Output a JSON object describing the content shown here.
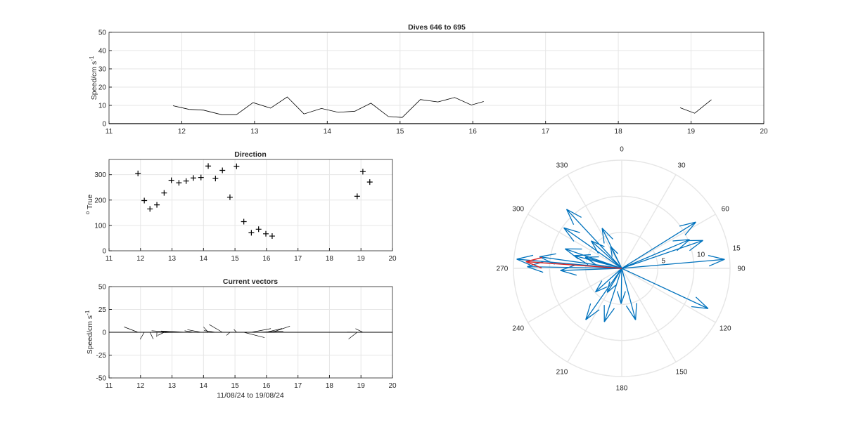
{
  "panels": {
    "speed": {
      "title": "Dives 646 to 695",
      "ylabel_main": "Speed/cm s",
      "ylabel_sup": "-1",
      "xlim": [
        11,
        20
      ],
      "ylim": [
        0,
        50
      ],
      "xticks": [
        "11",
        "12",
        "13",
        "14",
        "15",
        "16",
        "17",
        "18",
        "19",
        "20"
      ],
      "yticks": [
        "0",
        "10",
        "20",
        "30",
        "40",
        "50"
      ]
    },
    "direction": {
      "title": "Direction",
      "ylabel_sup": "o",
      "ylabel_main": " True",
      "xlim": [
        11,
        20
      ],
      "ylim": [
        0,
        360
      ],
      "xticks": [
        "11",
        "12",
        "13",
        "14",
        "15",
        "16",
        "17",
        "18",
        "19",
        "20"
      ],
      "yticks": [
        "0",
        "100",
        "200",
        "300"
      ]
    },
    "vectors": {
      "title": "Current vectors",
      "ylabel_main": "Speed/cm s",
      "ylabel_sup": "-1",
      "xlabel": "11/08/24 to 19/08/24",
      "xlim": [
        11,
        20
      ],
      "ylim": [
        -50,
        50
      ],
      "xticks": [
        "11",
        "12",
        "13",
        "14",
        "15",
        "16",
        "17",
        "18",
        "19",
        "20"
      ],
      "yticks": [
        "-50",
        "-25",
        "0",
        "25",
        "50"
      ]
    },
    "compass": {
      "angle_labels": [
        "0",
        "30",
        "60",
        "90",
        "120",
        "150",
        "180",
        "210",
        "240",
        "270",
        "300",
        "330"
      ],
      "radius_labels": [
        "5",
        "10",
        "15"
      ],
      "rmax": 15
    }
  },
  "colors": {
    "line": "#000000",
    "grid": "#e6e6e6",
    "axis": "#262626",
    "arrow": "#0072bd",
    "mean_arrow": "#d62728"
  },
  "chart_data": [
    {
      "type": "line",
      "title": "Dives 646 to 695",
      "ylabel": "Speed/cm s-1",
      "xlim": [
        11,
        20
      ],
      "ylim": [
        0,
        50
      ],
      "grid": true,
      "segments": [
        [
          [
            11.88,
            9.8
          ],
          [
            12.1,
            7.8
          ],
          [
            12.3,
            7.4
          ],
          [
            12.55,
            4.9
          ],
          [
            12.75,
            4.9
          ],
          [
            12.98,
            11.5
          ],
          [
            13.22,
            8.5
          ],
          [
            13.45,
            14.6
          ],
          [
            13.68,
            5.3
          ],
          [
            13.92,
            8.3
          ],
          [
            14.15,
            6.2
          ],
          [
            14.38,
            6.8
          ],
          [
            14.6,
            11.2
          ],
          [
            14.84,
            3.9
          ],
          [
            15.03,
            3.4
          ],
          [
            15.28,
            13.2
          ],
          [
            15.52,
            11.9
          ],
          [
            15.75,
            14.3
          ],
          [
            15.98,
            10.2
          ],
          [
            16.15,
            12.1
          ]
        ],
        [
          [
            18.85,
            8.7
          ],
          [
            19.05,
            5.7
          ],
          [
            19.28,
            13.1
          ]
        ]
      ]
    },
    {
      "type": "scatter",
      "title": "Direction",
      "ylabel": "o True",
      "xlim": [
        11,
        20
      ],
      "ylim": [
        0,
        360
      ],
      "grid": true,
      "points": [
        [
          11.92,
          305
        ],
        [
          12.12,
          198
        ],
        [
          12.3,
          165
        ],
        [
          12.52,
          181
        ],
        [
          12.75,
          228
        ],
        [
          12.98,
          278
        ],
        [
          13.22,
          268
        ],
        [
          13.45,
          275
        ],
        [
          13.68,
          287
        ],
        [
          13.92,
          289
        ],
        [
          14.15,
          334
        ],
        [
          14.38,
          285
        ],
        [
          14.6,
          317
        ],
        [
          14.84,
          211
        ],
        [
          15.05,
          333
        ],
        [
          15.28,
          115
        ],
        [
          15.52,
          71
        ],
        [
          15.75,
          85
        ],
        [
          15.98,
          67
        ],
        [
          16.18,
          58
        ],
        [
          18.88,
          215
        ],
        [
          19.06,
          312
        ],
        [
          19.28,
          271
        ]
      ]
    },
    {
      "type": "vector",
      "title": "Current vectors",
      "ylabel": "Speed/cm s-1",
      "xlabel": "11/08/24 to 19/08/24",
      "xlim": [
        11,
        20
      ],
      "ylim": [
        -50,
        50
      ],
      "grid": true,
      "vectors": [
        {
          "x": 11.92,
          "speed": 9.8,
          "dir": 305
        },
        {
          "x": 12.12,
          "speed": 7.8,
          "dir": 198
        },
        {
          "x": 12.3,
          "speed": 7.4,
          "dir": 165
        },
        {
          "x": 12.52,
          "speed": 4.9,
          "dir": 181
        },
        {
          "x": 12.75,
          "speed": 4.9,
          "dir": 228
        },
        {
          "x": 12.98,
          "speed": 11.5,
          "dir": 278
        },
        {
          "x": 13.22,
          "speed": 8.5,
          "dir": 268
        },
        {
          "x": 13.45,
          "speed": 14.6,
          "dir": 275
        },
        {
          "x": 13.68,
          "speed": 5.3,
          "dir": 287
        },
        {
          "x": 13.92,
          "speed": 8.3,
          "dir": 289
        },
        {
          "x": 14.15,
          "speed": 6.2,
          "dir": 334
        },
        {
          "x": 14.38,
          "speed": 6.8,
          "dir": 285
        },
        {
          "x": 14.6,
          "speed": 11.2,
          "dir": 317
        },
        {
          "x": 14.84,
          "speed": 3.9,
          "dir": 211
        },
        {
          "x": 15.05,
          "speed": 3.4,
          "dir": 333
        },
        {
          "x": 15.28,
          "speed": 13.2,
          "dir": 115
        },
        {
          "x": 15.52,
          "speed": 11.9,
          "dir": 71
        },
        {
          "x": 15.75,
          "speed": 14.3,
          "dir": 85
        },
        {
          "x": 15.98,
          "speed": 10.2,
          "dir": 67
        },
        {
          "x": 16.18,
          "speed": 12.1,
          "dir": 58
        },
        {
          "x": 18.88,
          "speed": 8.7,
          "dir": 215
        },
        {
          "x": 19.06,
          "speed": 5.7,
          "dir": 312
        },
        {
          "x": 19.28,
          "speed": 13.1,
          "dir": 271
        }
      ]
    },
    {
      "type": "compass",
      "rmax": 15,
      "arrows": [
        {
          "dir": 305,
          "speed": 9.8
        },
        {
          "dir": 198,
          "speed": 7.8
        },
        {
          "dir": 165,
          "speed": 7.4
        },
        {
          "dir": 181,
          "speed": 4.9
        },
        {
          "dir": 228,
          "speed": 4.9
        },
        {
          "dir": 278,
          "speed": 11.5
        },
        {
          "dir": 268,
          "speed": 8.5
        },
        {
          "dir": 275,
          "speed": 14.6
        },
        {
          "dir": 287,
          "speed": 5.3
        },
        {
          "dir": 289,
          "speed": 8.3
        },
        {
          "dir": 334,
          "speed": 6.2
        },
        {
          "dir": 285,
          "speed": 6.8
        },
        {
          "dir": 317,
          "speed": 11.2
        },
        {
          "dir": 211,
          "speed": 3.9
        },
        {
          "dir": 333,
          "speed": 3.4
        },
        {
          "dir": 115,
          "speed": 13.2
        },
        {
          "dir": 71,
          "speed": 11.9
        },
        {
          "dir": 85,
          "speed": 14.3
        },
        {
          "dir": 67,
          "speed": 10.2
        },
        {
          "dir": 58,
          "speed": 12.1
        },
        {
          "dir": 215,
          "speed": 8.7
        },
        {
          "dir": 312,
          "speed": 5.7
        },
        {
          "dir": 271,
          "speed": 13.1
        }
      ],
      "mean_arrow": {
        "dir": 274,
        "speed": 13.3
      }
    }
  ]
}
